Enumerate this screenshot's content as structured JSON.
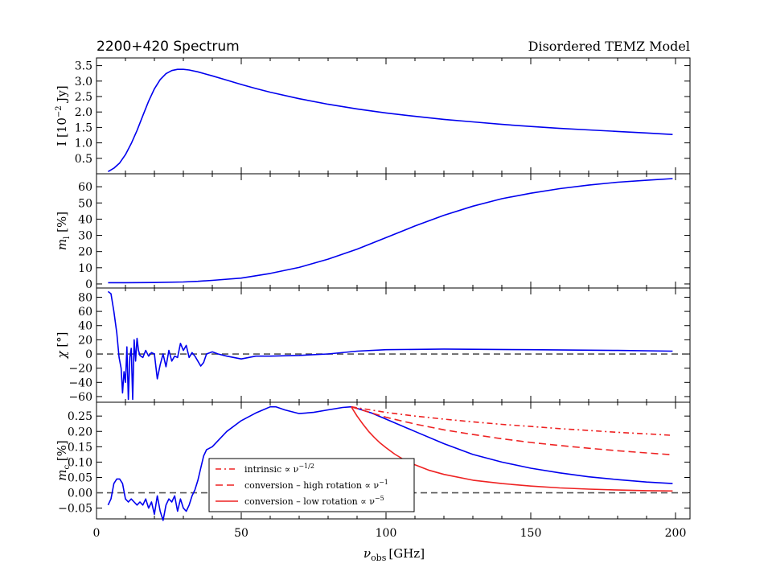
{
  "chart_data": {
    "type": "line",
    "title_left": "2200+420  Spectrum",
    "title_right": "Disordered TEMZ Model",
    "xlabel_main": "ν",
    "xlabel_sub": "obs",
    "xlabel_unit": "[GHz]",
    "xlim": [
      0,
      205
    ],
    "xticks": [
      0,
      50,
      100,
      150,
      200
    ],
    "colors": {
      "data": "#0000ee",
      "model": "#ee2222",
      "zero": "#555555",
      "axis": "#000000"
    },
    "panels": [
      {
        "id": "intensity",
        "ylabel_text": "I [10",
        "ylabel_sup": "−2",
        "ylabel_unit": " Jy]",
        "ylim": [
          0.0,
          3.75
        ],
        "yticks": [
          0.5,
          1.0,
          1.5,
          2.0,
          2.5,
          3.0,
          3.5
        ],
        "ytick_labels": [
          "0.5",
          "1.0",
          "1.5",
          "2.0",
          "2.5",
          "3.0",
          "3.5"
        ],
        "zero_line": false,
        "series": [
          {
            "name": "I",
            "x": [
              4,
              6,
              8,
              10,
              12,
              14,
              16,
              18,
              20,
              22,
              24,
              26,
              28,
              30,
              32,
              35,
              40,
              45,
              50,
              55,
              60,
              70,
              80,
              90,
              100,
              110,
              120,
              130,
              140,
              150,
              160,
              170,
              180,
              190,
              199
            ],
            "y": [
              0.07,
              0.18,
              0.35,
              0.62,
              0.98,
              1.4,
              1.88,
              2.35,
              2.75,
              3.05,
              3.24,
              3.34,
              3.38,
              3.38,
              3.36,
              3.3,
              3.17,
              3.03,
              2.89,
              2.76,
              2.64,
              2.43,
              2.25,
              2.1,
              1.97,
              1.86,
              1.76,
              1.68,
              1.6,
              1.53,
              1.47,
              1.42,
              1.37,
              1.32,
              1.27
            ]
          }
        ]
      },
      {
        "id": "linear-pol",
        "ylabel_var": "m",
        "ylabel_sub": "l",
        "ylabel_unit": " [%]",
        "ylim": [
          -2.5,
          68
        ],
        "yticks": [
          0,
          10,
          20,
          30,
          40,
          50,
          60
        ],
        "ytick_labels": [
          "0",
          "10",
          "20",
          "30",
          "40",
          "50",
          "60"
        ],
        "zero_line": false,
        "series": [
          {
            "name": "ml",
            "x": [
              4,
              10,
              20,
              30,
              35,
              40,
              50,
              60,
              70,
              80,
              90,
              100,
              110,
              120,
              130,
              140,
              150,
              160,
              170,
              180,
              190,
              199
            ],
            "y": [
              0.8,
              0.8,
              0.9,
              1.2,
              1.6,
              2.2,
              3.6,
              6.5,
              10.2,
              15.3,
              21.5,
              28.6,
              35.8,
              42.4,
              48.0,
              52.6,
              56.0,
              58.8,
              61.0,
              62.8,
              64.0,
              65.0
            ]
          }
        ]
      },
      {
        "id": "evpa",
        "ylabel_var": "χ",
        "ylabel_unit": " [°]",
        "ylim": [
          -68,
          93
        ],
        "yticks": [
          -60,
          -40,
          -20,
          0,
          20,
          40,
          60,
          80
        ],
        "ytick_labels": [
          "−60",
          "−40",
          "−20",
          "0",
          "20",
          "40",
          "60",
          "80"
        ],
        "zero_line": true,
        "series": [
          {
            "name": "chi",
            "x": [
              4,
              5,
              6,
              7,
              7.8,
              8.5,
              9,
              9.5,
              10,
              10.5,
              11,
              11.5,
              12,
              12.5,
              13,
              13.5,
              14,
              14.5,
              15,
              16,
              17,
              18,
              19,
              20,
              21,
              22,
              23,
              24,
              25,
              26,
              27,
              28,
              29,
              30,
              31,
              32,
              33,
              34,
              35,
              36,
              37,
              38,
              40,
              42,
              45,
              50,
              55,
              60,
              70,
              80,
              90,
              100,
              120,
              150,
              180,
              199
            ],
            "y": [
              88,
              85,
              60,
              30,
              -5,
              -20,
              -55,
              -25,
              -40,
              10,
              -64,
              -5,
              8,
              -64,
              20,
              -10,
              22,
              5,
              -2,
              -5,
              5,
              -3,
              2,
              0,
              -35,
              -15,
              0,
              -18,
              5,
              -10,
              -3,
              -5,
              15,
              5,
              12,
              -5,
              2,
              -3,
              -10,
              -17,
              -12,
              0,
              3,
              0,
              -3,
              -7,
              -3,
              -3,
              -2,
              0,
              4,
              6,
              7,
              6,
              5,
              4
            ]
          }
        ]
      },
      {
        "id": "circular-pol",
        "ylabel_var": "m",
        "ylabel_sub": "c",
        "ylabel_unit": " [%]",
        "ylim": [
          -0.085,
          0.295
        ],
        "yticks": [
          -0.05,
          0.0,
          0.05,
          0.1,
          0.15,
          0.2,
          0.25
        ],
        "ytick_labels": [
          "−0.05",
          "0.00",
          "0.05",
          "0.10",
          "0.15",
          "0.20",
          "0.25"
        ],
        "zero_line": true,
        "legend": {
          "position": "lower-center",
          "entries": [
            {
              "style": "dashdot",
              "text": "intrinsic ∝ ν",
              "exponent": "−1/2"
            },
            {
              "style": "dashed",
              "text": "conversion – high rotation ∝ ν",
              "exponent": "−1"
            },
            {
              "style": "solid",
              "text": "conversion – low rotation ∝ ν",
              "exponent": "−5"
            }
          ]
        },
        "series": [
          {
            "name": "mc",
            "color_key": "data",
            "style": "solid",
            "x": [
              4,
              5,
              6,
              7,
              8,
              9,
              10,
              11,
              12,
              13,
              14,
              15,
              16,
              17,
              18,
              19,
              20,
              21,
              22,
              23,
              24,
              25,
              26,
              27,
              28,
              29,
              30,
              31,
              32,
              33,
              34,
              35,
              36,
              37,
              38,
              40,
              42,
              45,
              50,
              55,
              60,
              62,
              65,
              70,
              75,
              80,
              85,
              88,
              90,
              95,
              100,
              110,
              120,
              130,
              140,
              150,
              160,
              170,
              180,
              190,
              199
            ],
            "y": [
              -0.04,
              -0.02,
              0.03,
              0.045,
              0.045,
              0.03,
              -0.02,
              -0.03,
              -0.02,
              -0.03,
              -0.04,
              -0.03,
              -0.04,
              -0.02,
              -0.05,
              -0.03,
              -0.07,
              -0.01,
              -0.06,
              -0.09,
              -0.04,
              -0.02,
              -0.03,
              -0.01,
              -0.06,
              -0.02,
              -0.05,
              -0.06,
              -0.04,
              -0.01,
              0.01,
              0.04,
              0.08,
              0.12,
              0.14,
              0.15,
              0.17,
              0.2,
              0.235,
              0.26,
              0.28,
              0.28,
              0.27,
              0.258,
              0.262,
              0.27,
              0.278,
              0.28,
              0.275,
              0.26,
              0.24,
              0.2,
              0.16,
              0.125,
              0.1,
              0.08,
              0.065,
              0.052,
              0.043,
              0.035,
              0.03
            ]
          },
          {
            "name": "intrinsic",
            "color_key": "model",
            "style": "dashdot",
            "x": [
              88,
              100,
              110,
              120,
              130,
              140,
              150,
              160,
              170,
              180,
              190,
              199
            ],
            "y": [
              0.28,
              0.262,
              0.25,
              0.24,
              0.231,
              0.223,
              0.216,
              0.209,
              0.203,
              0.197,
              0.192,
              0.187
            ]
          },
          {
            "name": "high-rotation",
            "color_key": "model",
            "style": "dashed",
            "x": [
              88,
              100,
              110,
              120,
              130,
              140,
              150,
              160,
              170,
              180,
              190,
              199
            ],
            "y": [
              0.28,
              0.246,
              0.224,
              0.205,
              0.19,
              0.176,
              0.164,
              0.154,
              0.145,
              0.137,
              0.13,
              0.124
            ]
          },
          {
            "name": "low-rotation",
            "color_key": "model",
            "style": "solid",
            "x": [
              88,
              90,
              92,
              94,
              96,
              98,
              100,
              103,
              106,
              110,
              115,
              120,
              130,
              140,
              150,
              160,
              170,
              180,
              190,
              199
            ],
            "y": [
              0.28,
              0.25,
              0.224,
              0.2,
              0.18,
              0.162,
              0.147,
              0.126,
              0.109,
              0.091,
              0.073,
              0.06,
              0.041,
              0.03,
              0.022,
              0.016,
              0.012,
              0.009,
              0.007,
              0.006
            ]
          }
        ]
      }
    ]
  }
}
